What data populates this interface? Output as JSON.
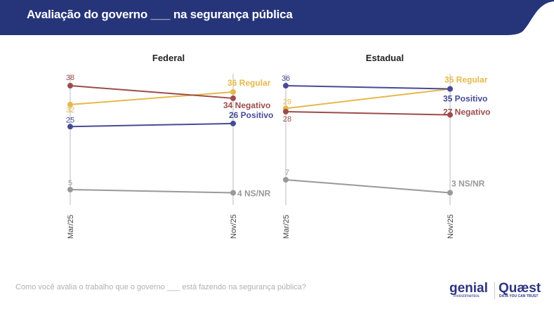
{
  "header": {
    "title": "Avaliação do governo ___ na segurança pública",
    "bg": "#263479"
  },
  "footer": {
    "question": "Como você avalia o trabalho que o governo ___ está fazendo na segurança pública?"
  },
  "logos": {
    "genial": "genial",
    "genial_sub": "investimentos",
    "quaest": "Quæst",
    "quaest_sub": "DATA YOU CAN TRUST"
  },
  "chart_data": [
    {
      "type": "line",
      "title": "Federal",
      "categories": [
        "Mar/25",
        "Nov/25"
      ],
      "series": [
        {
          "name": "Regular",
          "values": [
            32,
            36
          ],
          "color": "#e6b84a",
          "end_label": "36 Regular",
          "start_label": "32"
        },
        {
          "name": "Negativo",
          "values": [
            38,
            34
          ],
          "color": "#9c4c4c",
          "end_label": "34 Negativo",
          "start_label": "38"
        },
        {
          "name": "Positivo",
          "values": [
            25,
            26
          ],
          "color": "#474b96",
          "end_label": "26 Positivo",
          "start_label": "25"
        },
        {
          "name": "NS/NR",
          "values": [
            5,
            4
          ],
          "color": "#999999",
          "end_label": "4 NS/NR",
          "start_label": "5"
        }
      ]
    },
    {
      "type": "line",
      "title": "Estadual",
      "categories": [
        "Mar/25",
        "Nov/25"
      ],
      "series": [
        {
          "name": "Regular",
          "values": [
            29,
            35
          ],
          "color": "#e6b84a",
          "end_label": "35 Regular",
          "start_label": "29"
        },
        {
          "name": "Negativo",
          "values": [
            28,
            27
          ],
          "color": "#9c4c4c",
          "end_label": "27 Negativo",
          "start_label": "28"
        },
        {
          "name": "Positivo",
          "values": [
            36,
            35
          ],
          "color": "#474b96",
          "end_label": "35 Positivo",
          "start_label": "36"
        },
        {
          "name": "NS/NR",
          "values": [
            7,
            3
          ],
          "color": "#999999",
          "end_label": "3 NS/NR",
          "start_label": "7"
        }
      ]
    }
  ]
}
